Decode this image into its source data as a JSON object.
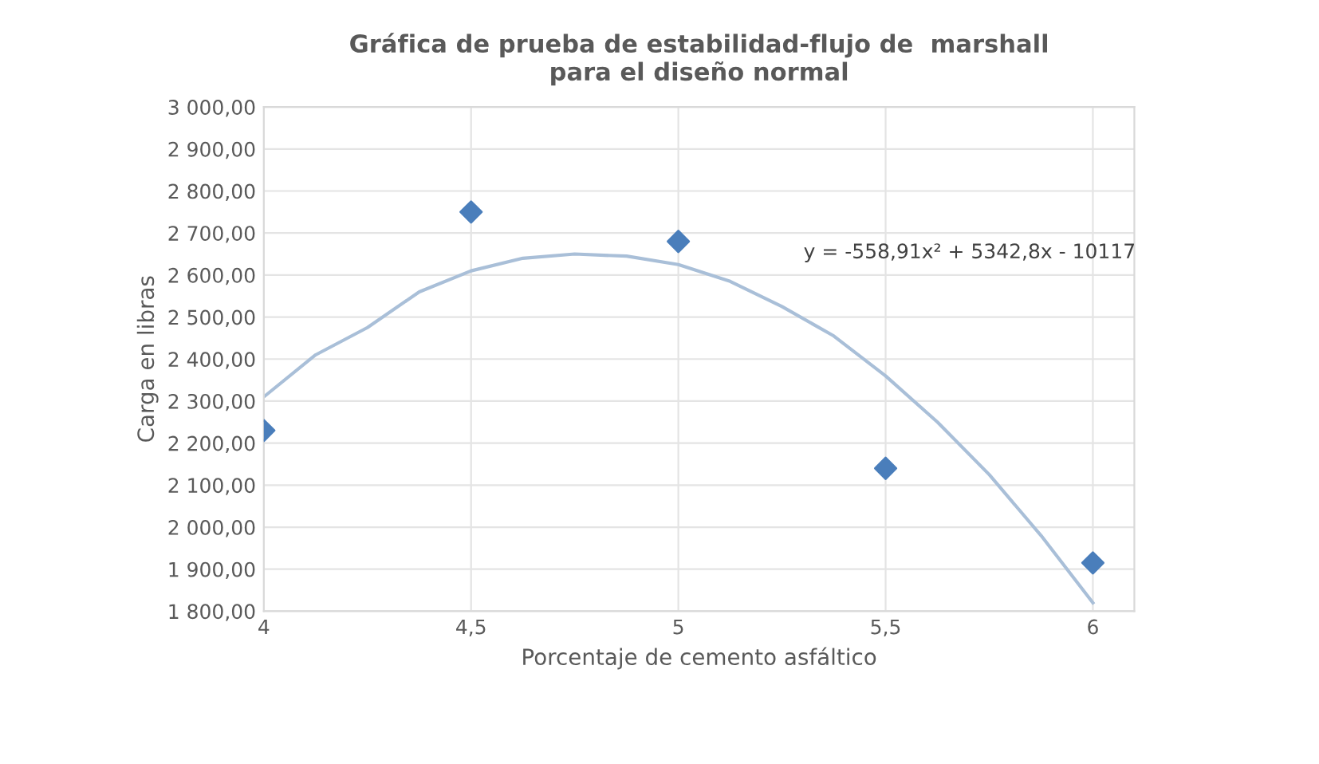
{
  "chart_data": {
    "type": "scatter",
    "title": "Gráfica de prueba de estabilidad-flujo de  marshall\npara el diseño normal",
    "xlabel": "Porcentaje de cemento asfáltico",
    "ylabel": "Carga en libras",
    "annotations": [
      "y = -558,91x² + 5342,8x - 10117"
    ],
    "series": [
      {
        "color": "#4a7ebb",
        "marker": "diamond",
        "x": [
          4,
          4.5,
          5,
          5.5,
          6
        ],
        "values": [
          2230,
          2750,
          2680,
          2140,
          1915
        ]
      },
      {
        "type": "line",
        "marker": "none",
        "color": "#a9bfd8",
        "x": [
          4,
          4.125,
          4.25,
          4.375,
          4.5,
          4.625,
          4.75,
          4.875,
          5,
          5.125,
          5.25,
          5.375,
          5.5,
          5.625,
          5.75,
          5.875,
          6
        ],
        "values": [
          2310,
          2410,
          2475,
          2560,
          2610,
          2640,
          2650,
          2645,
          2625,
          2585,
          2525,
          2455,
          2360,
          2250,
          2125,
          1980,
          1820
        ]
      }
    ],
    "grid": true,
    "legend": false,
    "xlim": [
      4,
      6.1
    ],
    "xticks": [
      4,
      {
        "value": 4.5,
        "label": "4,5"
      },
      5,
      {
        "value": 5.5,
        "label": "5,5"
      },
      6
    ],
    "ylim": [
      1800,
      3000
    ],
    "yticks": [
      {
        "value": 1800,
        "label": "1 800,00"
      },
      {
        "value": 1900,
        "label": "1 900,00"
      },
      {
        "value": 2000,
        "label": "2 000,00"
      },
      {
        "value": 2100,
        "label": "2 100,00"
      },
      {
        "value": 2200,
        "label": "2 200,00"
      },
      {
        "value": 2300,
        "label": "2 300,00"
      },
      {
        "value": 2400,
        "label": "2 400,00"
      },
      {
        "value": 2500,
        "label": "2 500,00"
      },
      {
        "value": 2600,
        "label": "2 600,00"
      },
      {
        "value": 2700,
        "label": "2 700,00"
      },
      {
        "value": 2800,
        "label": "2 800,00"
      },
      {
        "value": 2900,
        "label": "2 900,00"
      },
      {
        "value": 3000,
        "label": "3 000,00"
      }
    ]
  }
}
